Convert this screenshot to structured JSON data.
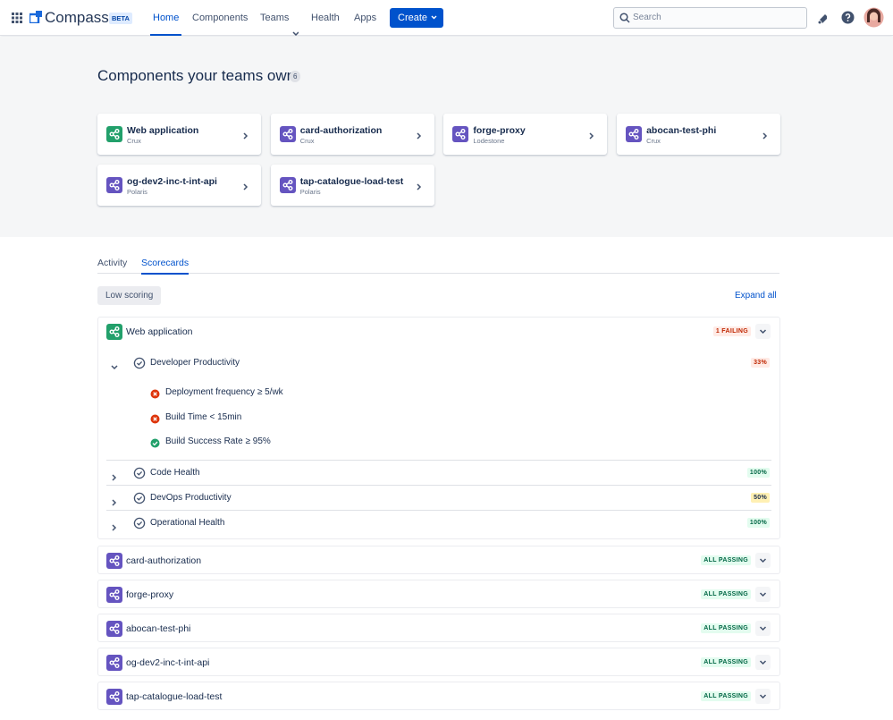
{
  "nav": {
    "brand": "Compass",
    "badge": "BETA",
    "links": [
      "Home",
      "Components",
      "Teams",
      "Health",
      "Apps"
    ],
    "create": "Create",
    "search_placeholder": "Search"
  },
  "section": {
    "title": "Components your teams own",
    "count": 6,
    "components": [
      {
        "name": "Web application",
        "team": "Crux",
        "icon_color": "#22a06b"
      },
      {
        "name": "card-authorization",
        "team": "Crux",
        "icon_color": "#6554c0"
      },
      {
        "name": "forge-proxy",
        "team": "Lodestone",
        "icon_color": "#6554c0"
      },
      {
        "name": "abocan-test-phi",
        "team": "Crux",
        "icon_color": "#6554c0"
      },
      {
        "name": "og-dev2-inc-t-int-api",
        "team": "Polaris",
        "icon_color": "#6554c0"
      },
      {
        "name": "tap-catalogue-load-test",
        "team": "Polaris",
        "icon_color": "#6554c0"
      }
    ]
  },
  "tabs": [
    "Activity",
    "Scorecards"
  ],
  "filter": "Low scoring",
  "expand_all": "Expand all",
  "scorecards": [
    {
      "component": "Web application",
      "icon_color": "#22a06b",
      "status": "1 FAILING",
      "tone": "danger",
      "checks": [
        {
          "name": "Developer Productivity",
          "score": "33%",
          "tone": "danger",
          "criteria": [
            {
              "text": "Deployment frequency ≥ 5/wk",
              "pass": false
            },
            {
              "text": "Build Time < 15min",
              "pass": false
            },
            {
              "text": "Build Success Rate ≥ 95%",
              "pass": true
            }
          ]
        },
        {
          "name": "Code Health",
          "score": "100%",
          "tone": "success"
        },
        {
          "name": "DevOps Productivity",
          "score": "50%",
          "tone": "warning"
        },
        {
          "name": "Operational Health",
          "score": "100%",
          "tone": "success"
        }
      ]
    },
    {
      "component": "card-authorization",
      "icon_color": "#6554c0",
      "status": "ALL PASSING",
      "tone": "success"
    },
    {
      "component": "forge-proxy",
      "icon_color": "#6554c0",
      "status": "ALL PASSING",
      "tone": "success"
    },
    {
      "component": "abocan-test-phi",
      "icon_color": "#6554c0",
      "status": "ALL PASSING",
      "tone": "success"
    },
    {
      "component": "og-dev2-inc-t-int-api",
      "icon_color": "#6554c0",
      "status": "ALL PASSING",
      "tone": "success"
    },
    {
      "component": "tap-catalogue-load-test",
      "icon_color": "#6554c0",
      "status": "ALL PASSING",
      "tone": "success"
    }
  ]
}
